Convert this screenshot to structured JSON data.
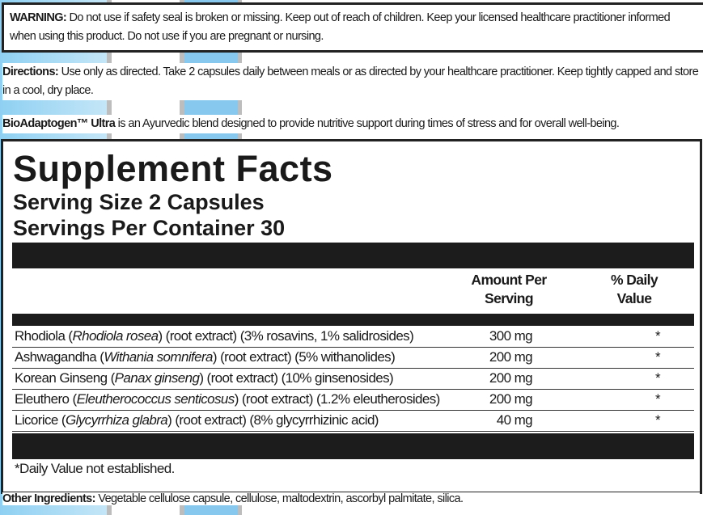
{
  "warning": {
    "label": "WARNING:",
    "text": " Do not use if safety seal is broken or missing. Keep out of reach of children. Keep your licensed healthcare practitioner informed when using this product. Do not use if you are pregnant or nursing."
  },
  "directions": {
    "label": "Directions:",
    "text": " Use only as directed. Take 2 capsules daily between meals or as directed by your healthcare practitioner. Keep tightly capped and store in a cool, dry place."
  },
  "blurb": {
    "label": "BioAdaptogen™ Ultra",
    "text": " is an Ayurvedic blend designed to provide nutritive support during times of stress and for overall well-being."
  },
  "facts": {
    "title": "Supplement Facts",
    "serving_size": "Serving Size 2 Capsules",
    "servings_per_container": "Servings Per Container 30",
    "col_amount_1": "Amount Per",
    "col_amount_2": "Serving",
    "col_dv_1": "% Daily",
    "col_dv_2": "Value",
    "rows": [
      {
        "name": "Rhodiola (",
        "latin": "Rhodiola rosea",
        "rest": ") (root extract) (3% rosavins, 1% salidrosides)",
        "amount": "300 mg",
        "dv": "*"
      },
      {
        "name": "Ashwagandha (",
        "latin": "Withania somnifera",
        "rest": ") (root extract) (5% withanolides)",
        "amount": "200 mg",
        "dv": "*"
      },
      {
        "name": "Korean Ginseng (",
        "latin": "Panax ginseng",
        "rest": ") (root extract) (10% ginsenosides)",
        "amount": "200 mg",
        "dv": "*"
      },
      {
        "name": "Eleuthero (",
        "latin": "Eleutherococcus senticosus",
        "rest": ") (root extract) (1.2% eleutherosides)",
        "amount": "200 mg",
        "dv": "*"
      },
      {
        "name": "Licorice (",
        "latin": "Glycyrrhiza glabra",
        "rest": ") (root extract) (8% glycyrrhizinic acid)",
        "amount": "40 mg",
        "dv": "*"
      }
    ],
    "footnote": "*Daily Value not established."
  },
  "other_ingredients": {
    "label": "Other Ingredients:",
    "text": " Vegetable cellulose capsule, cellulose, maltodextrin, ascorbyl palmitate, silica."
  },
  "colors": {
    "background_blue": "#86c8ee",
    "bar": "#1c1c1c"
  }
}
